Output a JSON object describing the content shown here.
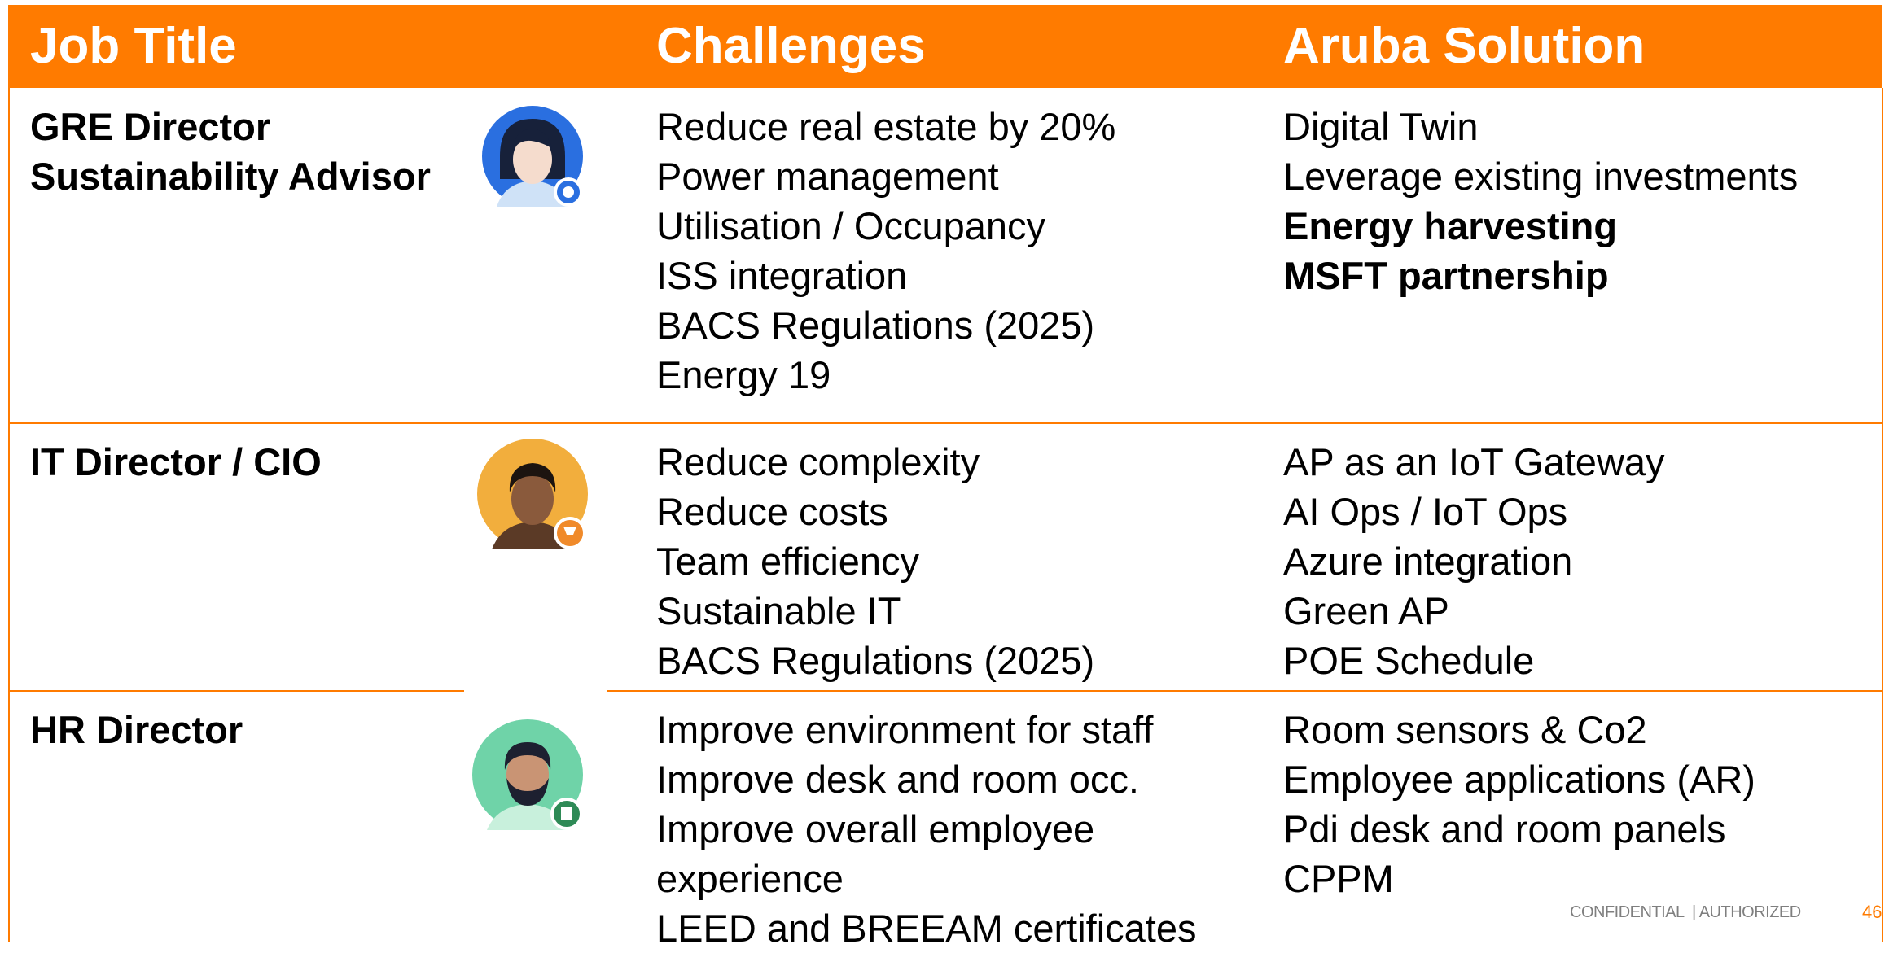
{
  "header": {
    "columns": [
      "Job Title",
      "Challenges",
      "Aruba Solution"
    ]
  },
  "rows": [
    {
      "title": [
        "GRE Director",
        "Sustainability Advisor"
      ],
      "challenges": [
        "Reduce real estate by 20%",
        "Power management",
        "Utilisation / Occupancy",
        "ISS integration",
        "BACS Regulations (2025)",
        "Energy 19"
      ],
      "solutions": [
        "Digital Twin",
        "Leverage existing investments",
        "Energy harvesting",
        "MSFT partnership"
      ]
    },
    {
      "title": [
        "IT Director / CIO"
      ],
      "challenges": [
        "Reduce complexity",
        "Reduce costs",
        "Team efficiency",
        "Sustainable IT",
        "BACS Regulations (2025)"
      ],
      "solutions": [
        "AP as an IoT Gateway",
        "AI Ops / IoT Ops",
        "Azure integration",
        "Green AP",
        "POE Schedule"
      ]
    },
    {
      "title": [
        "HR Director"
      ],
      "challenges": [
        "Improve environment for staff",
        "Improve desk and room occ.",
        "Improve overall employee experience",
        "LEED and BREEAM certificates"
      ],
      "solutions": [
        "Room sensors & Co2",
        "Employee applications  (AR)",
        "Pdi desk and room panels",
        "CPPM"
      ]
    }
  ],
  "footer": {
    "classification": "CONFIDENTIAL  | AUTHORIZED",
    "page": "46"
  }
}
